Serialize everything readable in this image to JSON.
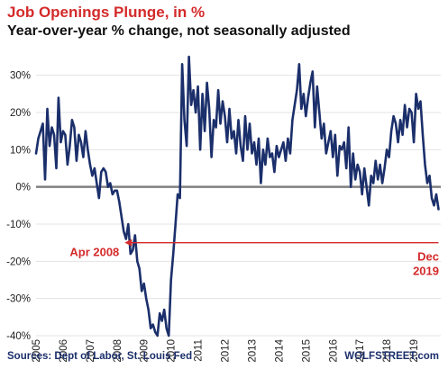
{
  "header": {
    "title": "Job Openings Plunge, in %",
    "subtitle": "Year-over-year % change, not seasonally adjusted"
  },
  "footer": {
    "source": "Sources: Dept of Labor, St. Louis Fed",
    "brand": "WOLFSTREET.com"
  },
  "chart_data": {
    "type": "line",
    "title": "Job Openings Plunge, in %",
    "subtitle": "Year-over-year % change, not seasonally adjusted",
    "xlabel": "",
    "ylabel": "",
    "xlim": [
      2005,
      2020
    ],
    "ylim": [
      -40,
      35
    ],
    "yticks": [
      30,
      20,
      10,
      0,
      -10,
      -20,
      -30,
      -40
    ],
    "ytick_labels": [
      "30%",
      "20%",
      "10%",
      "0%",
      "-10%",
      "-20%",
      "-30%",
      "-40%"
    ],
    "xticks": [
      2005,
      2006,
      2007,
      2008,
      2009,
      2010,
      2011,
      2012,
      2013,
      2014,
      2015,
      2016,
      2017,
      2018,
      2019
    ],
    "xtick_labels": [
      "2005",
      "2006",
      "2007",
      "2008",
      "2009",
      "2010",
      "2011",
      "2012",
      "2013",
      "2014",
      "2015",
      "2016",
      "2017",
      "2018",
      "2019"
    ],
    "grid": "horizontal",
    "colors": {
      "line": "#1b2f6b",
      "zero_line": "#808080",
      "annotation": "#d42a2a",
      "title": "#d42a2a"
    },
    "series": [
      {
        "name": "",
        "x": [
          2005.0,
          2005.083,
          2005.167,
          2005.25,
          2005.333,
          2005.417,
          2005.5,
          2005.583,
          2005.667,
          2005.75,
          2005.833,
          2005.917,
          2006.0,
          2006.083,
          2006.167,
          2006.25,
          2006.333,
          2006.417,
          2006.5,
          2006.583,
          2006.667,
          2006.75,
          2006.833,
          2006.917,
          2007.0,
          2007.083,
          2007.167,
          2007.25,
          2007.333,
          2007.417,
          2007.5,
          2007.583,
          2007.667,
          2007.75,
          2007.833,
          2007.917,
          2008.0,
          2008.083,
          2008.167,
          2008.25,
          2008.333,
          2008.417,
          2008.5,
          2008.583,
          2008.667,
          2008.75,
          2008.833,
          2008.917,
          2009.0,
          2009.083,
          2009.167,
          2009.25,
          2009.333,
          2009.417,
          2009.5,
          2009.583,
          2009.667,
          2009.75,
          2009.833,
          2009.917,
          2010.0,
          2010.083,
          2010.167,
          2010.25,
          2010.333,
          2010.417,
          2010.5,
          2010.583,
          2010.667,
          2010.75,
          2010.833,
          2010.917,
          2011.0,
          2011.083,
          2011.167,
          2011.25,
          2011.333,
          2011.417,
          2011.5,
          2011.583,
          2011.667,
          2011.75,
          2011.833,
          2011.917,
          2012.0,
          2012.083,
          2012.167,
          2012.25,
          2012.333,
          2012.417,
          2012.5,
          2012.583,
          2012.667,
          2012.75,
          2012.833,
          2012.917,
          2013.0,
          2013.083,
          2013.167,
          2013.25,
          2013.333,
          2013.417,
          2013.5,
          2013.583,
          2013.667,
          2013.75,
          2013.833,
          2013.917,
          2014.0,
          2014.083,
          2014.167,
          2014.25,
          2014.333,
          2014.417,
          2014.5,
          2014.583,
          2014.667,
          2014.75,
          2014.833,
          2014.917,
          2015.0,
          2015.083,
          2015.167,
          2015.25,
          2015.333,
          2015.417,
          2015.5,
          2015.583,
          2015.667,
          2015.75,
          2015.833,
          2015.917,
          2016.0,
          2016.083,
          2016.167,
          2016.25,
          2016.333,
          2016.417,
          2016.5,
          2016.583,
          2016.667,
          2016.75,
          2016.833,
          2016.917,
          2017.0,
          2017.083,
          2017.167,
          2017.25,
          2017.333,
          2017.417,
          2017.5,
          2017.583,
          2017.667,
          2017.75,
          2017.833,
          2017.917,
          2018.0,
          2018.083,
          2018.167,
          2018.25,
          2018.333,
          2018.417,
          2018.5,
          2018.583,
          2018.667,
          2018.75,
          2018.833,
          2018.917,
          2019.0,
          2019.083,
          2019.167,
          2019.25,
          2019.333,
          2019.417,
          2019.5,
          2019.583,
          2019.667,
          2019.75,
          2019.833,
          2019.917
        ],
        "y": [
          9,
          13,
          15,
          17,
          2,
          21,
          11,
          16,
          14,
          5,
          24,
          12,
          15,
          14,
          6,
          11,
          18,
          16,
          7,
          14,
          12,
          8,
          15,
          10,
          6,
          3,
          5,
          1,
          -3,
          4,
          5,
          4,
          0,
          1,
          -2,
          -1,
          -1,
          -4,
          -8,
          -12,
          -14,
          -10,
          -18,
          -17,
          -13,
          -20,
          -22,
          -28,
          -26,
          -30,
          -33,
          -38,
          -37,
          -39,
          -40,
          -34,
          -36,
          -33,
          -38,
          -40,
          -25,
          -18,
          -10,
          -2,
          -3,
          33,
          18,
          11,
          35,
          22,
          26,
          20,
          27,
          10,
          25,
          15,
          28,
          21,
          8,
          18,
          16,
          26,
          17,
          23,
          19,
          12,
          21,
          13,
          15,
          9,
          18,
          11,
          7,
          19,
          10,
          17,
          9,
          12,
          6,
          13,
          1,
          10,
          6,
          13,
          8,
          9,
          4,
          11,
          8,
          10,
          12,
          7,
          13,
          9,
          18,
          22,
          26,
          33,
          21,
          25,
          19,
          24,
          28,
          31,
          16,
          27,
          20,
          13,
          17,
          9,
          12,
          15,
          8,
          14,
          3,
          11,
          10,
          12,
          5,
          16,
          0,
          9,
          2,
          6,
          4,
          -2,
          5,
          0,
          -5,
          3,
          1,
          7,
          2,
          6,
          1,
          5,
          10,
          8,
          15,
          19,
          17,
          12,
          18,
          14,
          22,
          16,
          21,
          20,
          12,
          25,
          21,
          23,
          14,
          6,
          1,
          3,
          -3,
          -5,
          -2,
          -6
        ]
      }
    ],
    "annotations": [
      {
        "label": "Apr 2008",
        "x": 2008.25,
        "y": -15
      },
      {
        "label": "Dec 2019",
        "x": 2019.917,
        "y": -15
      }
    ]
  }
}
